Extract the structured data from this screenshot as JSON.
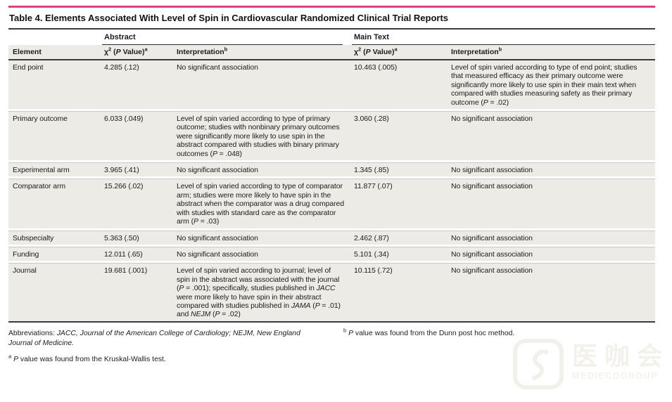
{
  "title": "Table 4. Elements Associated With Level of Spin in Cardiovascular Randomized Clinical Trial Reports",
  "colors": {
    "accent_bar": "#de4080",
    "row_shade": "#edebe5",
    "rule_dark": "#3b3b3b",
    "rule_light": "#c9c7c1"
  },
  "table": {
    "spanners": {
      "abstract": "Abstract",
      "main_text": "Main Text"
    },
    "headers": {
      "element": "Element",
      "chi_square": "χ^2^ (*P* Value)^a^",
      "interpretation": "Interpretation^b^"
    },
    "rows": [
      {
        "element": "End point",
        "abs_chi": "4.285 (.12)",
        "abs_interp": "No significant association",
        "main_chi": "10.463 (.005)",
        "main_interp": "Level of spin varied according to type of end point; studies that measured efficacy as their primary outcome were significantly more likely to use spin in their main text when compared with studies measuring safety as their primary outcome (*P* = .02)"
      },
      {
        "element": "Primary outcome",
        "abs_chi": "6.033 (.049)",
        "abs_interp": "Level of spin varied according to type of primary outcome; studies with nonbinary primary outcomes were significantly more likely to use spin in the abstract compared with studies with binary primary outcomes (*P* = .048)",
        "main_chi": "3.060 (.28)",
        "main_interp": "No significant association"
      },
      {
        "element": "Experimental arm",
        "abs_chi": "3.965 (.41)",
        "abs_interp": "No significant association",
        "main_chi": "1.345 (.85)",
        "main_interp": "No significant association"
      },
      {
        "element": "Comparator arm",
        "abs_chi": "15.266 (.02)",
        "abs_interp": "Level of spin varied according to type of comparator arm; studies were more likely to have spin in the abstract when the comparator was a drug compared with studies with standard care as the comparator arm (*P* = .03)",
        "main_chi": "11.877 (.07)",
        "main_interp": "No significant association"
      },
      {
        "element": "Subspecialty",
        "abs_chi": "5.363 (.50)",
        "abs_interp": "No significant association",
        "main_chi": "2.462 (.87)",
        "main_interp": "No significant association"
      },
      {
        "element": "Funding",
        "abs_chi": "12.011 (.65)",
        "abs_interp": "No significant association",
        "main_chi": "5.101 (.34)",
        "main_interp": "No significant association"
      },
      {
        "element": "Journal",
        "abs_chi": "19.681 (.001)",
        "abs_interp": "Level of spin varied according to journal; level of spin in the abstract was associated with the journal (*P* = .001); specifically, studies published in *JACC* were more likely to have spin in their abstract compared with studies published in *JAMA* (*P* = .01) and *NEJM* (*P* = .02)",
        "main_chi": "10.115 (.72)",
        "main_interp": "No significant association"
      }
    ]
  },
  "footnotes": {
    "abbreviations": "Abbreviations: *JACC, Journal of the American College of Cardiology; NEJM, New England Journal of Medicine.*",
    "a": "^a^ *P* value was found from the Kruskal-Wallis test.",
    "b": "^b^ *P* value was found from the Dunn post hoc method."
  },
  "watermark": {
    "cn": "医咖会",
    "en": "MEDIECOGROUP"
  }
}
